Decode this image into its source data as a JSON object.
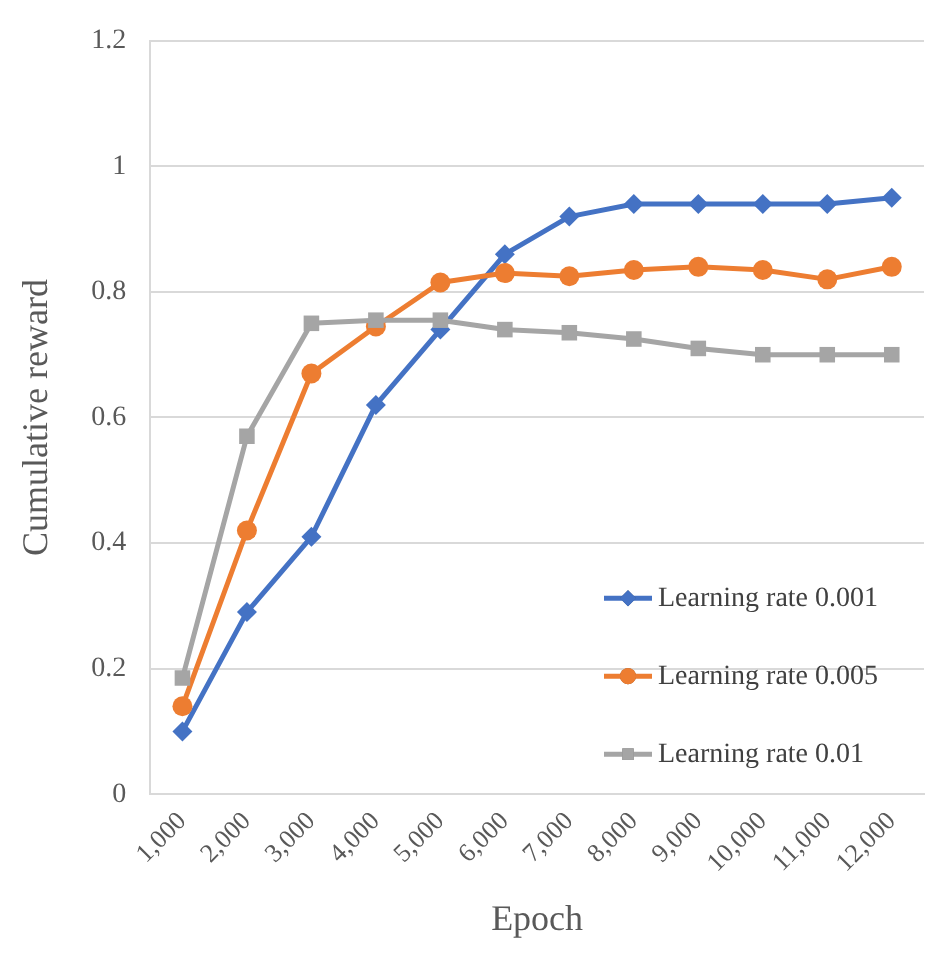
{
  "chart_data": {
    "type": "line",
    "xlabel": "Epoch",
    "ylabel": "Cumulative reward",
    "categories": [
      "1,000",
      "2,000",
      "3,000",
      "4,000",
      "5,000",
      "6,000",
      "7,000",
      "8,000",
      "9,000",
      "10,000",
      "11,000",
      "12,000"
    ],
    "series": [
      {
        "name": "Learning rate 0.001",
        "color": "#4472c4",
        "marker": "diamond",
        "values": [
          0.1,
          0.29,
          0.41,
          0.62,
          0.74,
          0.86,
          0.92,
          0.94,
          0.94,
          0.94,
          0.94,
          0.95
        ]
      },
      {
        "name": "Learning rate 0.005",
        "color": "#ed7d31",
        "marker": "circle",
        "values": [
          0.14,
          0.42,
          0.67,
          0.745,
          0.815,
          0.83,
          0.825,
          0.835,
          0.84,
          0.835,
          0.82,
          0.84
        ]
      },
      {
        "name": "Learning rate 0.01",
        "color": "#a5a5a5",
        "marker": "square",
        "values": [
          0.185,
          0.57,
          0.75,
          0.755,
          0.755,
          0.74,
          0.735,
          0.725,
          0.71,
          0.7,
          0.7,
          0.7
        ]
      }
    ],
    "ylim": [
      0,
      1.2
    ],
    "yticks": [
      0,
      0.2,
      0.4,
      0.6,
      0.8,
      1,
      1.2
    ],
    "grid": "y",
    "legend": "bottom right",
    "line_style": "solid"
  }
}
